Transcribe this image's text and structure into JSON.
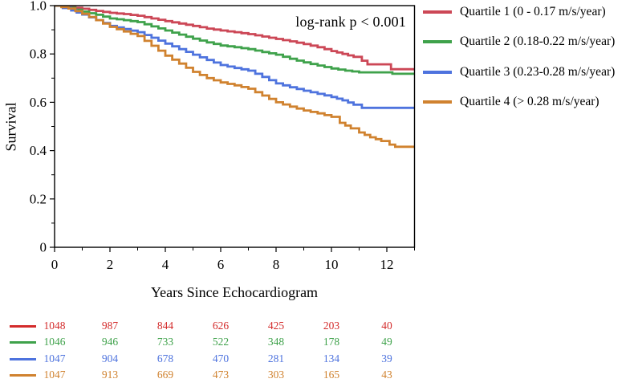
{
  "chart_data": {
    "type": "line",
    "subtype": "kaplan-meier-step-curves",
    "title": "",
    "annotation": "log-rank p < 0.001",
    "xlabel": "Years Since Echocardiogram",
    "ylabel": "Survival",
    "xlim": [
      0,
      13
    ],
    "ylim": [
      0,
      1.0
    ],
    "grid": false,
    "legend_position": "right",
    "frame_color": "#000000",
    "x_major_ticks": [
      0,
      2,
      4,
      6,
      8,
      10,
      12
    ],
    "x_major_tick_labels": [
      "0",
      "2",
      "4",
      "6",
      "8",
      "10",
      "12"
    ],
    "x_minor_ticks": [
      1,
      3,
      5,
      7,
      9,
      11,
      13
    ],
    "y_major_ticks": [
      0,
      0.2,
      0.4,
      0.6,
      0.8,
      1.0
    ],
    "y_major_tick_labels": [
      "0",
      "0.2",
      "0.4",
      "0.6",
      "0.8",
      "1.0"
    ],
    "y_minor_ticks": [
      0.1,
      0.3,
      0.5,
      0.7,
      0.9
    ],
    "series": [
      {
        "name": "quartile-1",
        "label": "Quartile 1 (0 - 0.17 m/s/year)",
        "color": "#CC4756",
        "points": [
          [
            0,
            1.0
          ],
          [
            0.5,
            0.995
          ],
          [
            1,
            0.987
          ],
          [
            1.5,
            0.978
          ],
          [
            2,
            0.97
          ],
          [
            2.5,
            0.965
          ],
          [
            3,
            0.958
          ],
          [
            3.5,
            0.947
          ],
          [
            4,
            0.936
          ],
          [
            4.5,
            0.926
          ],
          [
            5,
            0.916
          ],
          [
            5.5,
            0.905
          ],
          [
            6,
            0.897
          ],
          [
            6.5,
            0.89
          ],
          [
            7,
            0.882
          ],
          [
            7.5,
            0.872
          ],
          [
            8,
            0.862
          ],
          [
            8.5,
            0.852
          ],
          [
            9,
            0.841
          ],
          [
            9.5,
            0.828
          ],
          [
            10,
            0.812
          ],
          [
            10.4,
            0.8
          ],
          [
            10.8,
            0.788
          ],
          [
            11.1,
            0.772
          ],
          [
            11.3,
            0.757
          ],
          [
            12.1,
            0.757
          ],
          [
            12.15,
            0.737
          ],
          [
            13,
            0.737
          ]
        ]
      },
      {
        "name": "quartile-2",
        "label": "Quartile 2 (0.18-0.22 m/s/year)",
        "color": "#3FA24B",
        "points": [
          [
            0,
            1.0
          ],
          [
            0.5,
            0.991
          ],
          [
            1,
            0.975
          ],
          [
            1.5,
            0.962
          ],
          [
            2,
            0.947
          ],
          [
            2.5,
            0.94
          ],
          [
            3,
            0.932
          ],
          [
            3.5,
            0.914
          ],
          [
            4,
            0.897
          ],
          [
            4.5,
            0.88
          ],
          [
            5,
            0.863
          ],
          [
            5.5,
            0.848
          ],
          [
            6,
            0.835
          ],
          [
            6.5,
            0.828
          ],
          [
            7,
            0.82
          ],
          [
            7.5,
            0.808
          ],
          [
            8,
            0.797
          ],
          [
            8.5,
            0.78
          ],
          [
            9,
            0.765
          ],
          [
            9.5,
            0.752
          ],
          [
            10,
            0.74
          ],
          [
            10.5,
            0.731
          ],
          [
            11,
            0.724
          ],
          [
            12.1,
            0.724
          ],
          [
            12.2,
            0.718
          ],
          [
            13,
            0.718
          ]
        ]
      },
      {
        "name": "quartile-3",
        "label": "Quartile 3 (0.23-0.28 m/s/year)",
        "color": "#4E73DE",
        "points": [
          [
            0,
            1.0
          ],
          [
            0.3,
            0.99
          ],
          [
            0.6,
            0.98
          ],
          [
            1,
            0.963
          ],
          [
            1.5,
            0.94
          ],
          [
            2,
            0.916
          ],
          [
            2.5,
            0.903
          ],
          [
            3,
            0.89
          ],
          [
            3.5,
            0.867
          ],
          [
            4,
            0.843
          ],
          [
            4.5,
            0.82
          ],
          [
            5,
            0.797
          ],
          [
            5.5,
            0.775
          ],
          [
            6,
            0.754
          ],
          [
            6.5,
            0.742
          ],
          [
            7,
            0.731
          ],
          [
            7.5,
            0.705
          ],
          [
            8,
            0.678
          ],
          [
            8.5,
            0.662
          ],
          [
            9,
            0.648
          ],
          [
            9.5,
            0.635
          ],
          [
            10,
            0.622
          ],
          [
            10.4,
            0.608
          ],
          [
            10.8,
            0.59
          ],
          [
            11.1,
            0.577
          ],
          [
            13,
            0.577
          ]
        ]
      },
      {
        "name": "quartile-4",
        "label": "Quartile 4 (> 0.28 m/s/year)",
        "color": "#D0822F",
        "points": [
          [
            0,
            1.0
          ],
          [
            0.5,
            0.988
          ],
          [
            1,
            0.966
          ],
          [
            1.5,
            0.94
          ],
          [
            2,
            0.912
          ],
          [
            2.5,
            0.893
          ],
          [
            3,
            0.874
          ],
          [
            3.5,
            0.834
          ],
          [
            4,
            0.793
          ],
          [
            4.5,
            0.76
          ],
          [
            5,
            0.726
          ],
          [
            5.5,
            0.7
          ],
          [
            6,
            0.682
          ],
          [
            6.5,
            0.67
          ],
          [
            7,
            0.656
          ],
          [
            7.5,
            0.628
          ],
          [
            8,
            0.6
          ],
          [
            8.5,
            0.582
          ],
          [
            9,
            0.566
          ],
          [
            9.5,
            0.554
          ],
          [
            10,
            0.54
          ],
          [
            10.3,
            0.515
          ],
          [
            10.7,
            0.492
          ],
          [
            11,
            0.475
          ],
          [
            11.4,
            0.455
          ],
          [
            11.8,
            0.44
          ],
          [
            12.1,
            0.425
          ],
          [
            12.3,
            0.416
          ],
          [
            13,
            0.416
          ]
        ]
      }
    ]
  },
  "risk_table": {
    "description": "number at risk",
    "x_positions_years": [
      0,
      2,
      4,
      6,
      8,
      10,
      12
    ],
    "rows": [
      {
        "name": "quartile-1",
        "color": "#D32B2B",
        "counts": [
          "1048",
          "987",
          "844",
          "626",
          "425",
          "203",
          "40"
        ]
      },
      {
        "name": "quartile-2",
        "color": "#3FA24B",
        "counts": [
          "1046",
          "946",
          "733",
          "522",
          "348",
          "178",
          "49"
        ]
      },
      {
        "name": "quartile-3",
        "color": "#4E73DE",
        "counts": [
          "1047",
          "904",
          "678",
          "470",
          "281",
          "134",
          "39"
        ]
      },
      {
        "name": "quartile-4",
        "color": "#D0822F",
        "counts": [
          "1047",
          "913",
          "669",
          "473",
          "303",
          "165",
          "43"
        ]
      }
    ]
  }
}
